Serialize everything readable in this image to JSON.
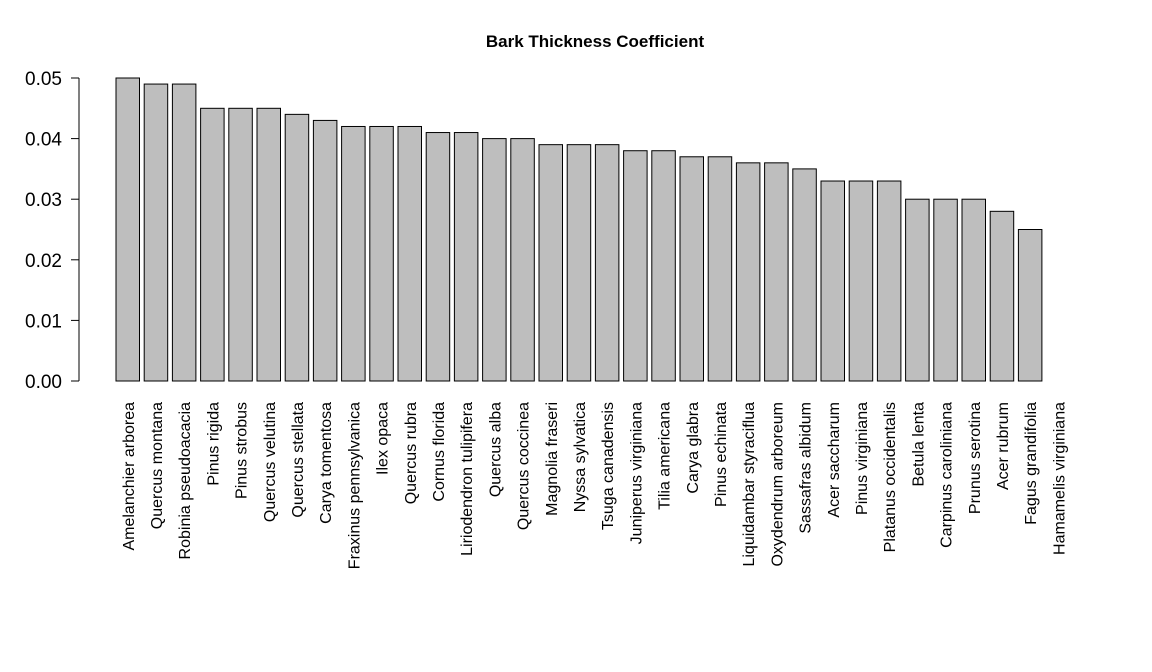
{
  "chart_data": {
    "type": "bar",
    "title": "Bark Thickness Coefficient",
    "xlabel": "",
    "ylabel": "",
    "ylim": [
      0,
      0.05
    ],
    "yticks": [
      "0.00",
      "0.01",
      "0.02",
      "0.03",
      "0.04",
      "0.05"
    ],
    "grid": false,
    "categories": [
      "Amelanchier arborea",
      "Quercus montana",
      "Robinia pseudoacacia",
      "Pinus rigida",
      "Pinus strobus",
      "Quercus velutina",
      "Quercus stellata",
      "Carya tomentosa",
      "Fraxinus pennsylvanica",
      "Ilex opaca",
      "Quercus rubra",
      "Cornus florida",
      "Liriodendron tulipifera",
      "Quercus alba",
      "Quercus coccinea",
      "Magnolia fraseri",
      "Nyssa sylvatica",
      "Tsuga canadensis",
      "Juniperus virginiana",
      "Tilia americana",
      "Carya glabra",
      "Pinus echinata",
      "Liquidambar styraciflua",
      "Oxydendrum arboreum",
      "Sassafras albidum",
      "Acer saccharum",
      "Pinus virginiana",
      "Platanus occidentalis",
      "Betula lenta",
      "Carpinus caroliniana",
      "Prunus serotina",
      "Acer rubrum",
      "Fagus grandifolia",
      "Hamamelis virginiana"
    ],
    "values": [
      0.05,
      0.049,
      0.049,
      0.045,
      0.045,
      0.045,
      0.044,
      0.043,
      0.042,
      0.042,
      0.042,
      0.041,
      0.041,
      0.04,
      0.04,
      0.039,
      0.039,
      0.039,
      0.038,
      0.038,
      0.037,
      0.037,
      0.036,
      0.036,
      0.035,
      0.033,
      0.033,
      0.033,
      0.03,
      0.03,
      0.03,
      0.028,
      0.025,
      0.0
    ],
    "colors": {
      "bar_fill": "#bebebe",
      "bar_stroke": "#000000"
    }
  }
}
